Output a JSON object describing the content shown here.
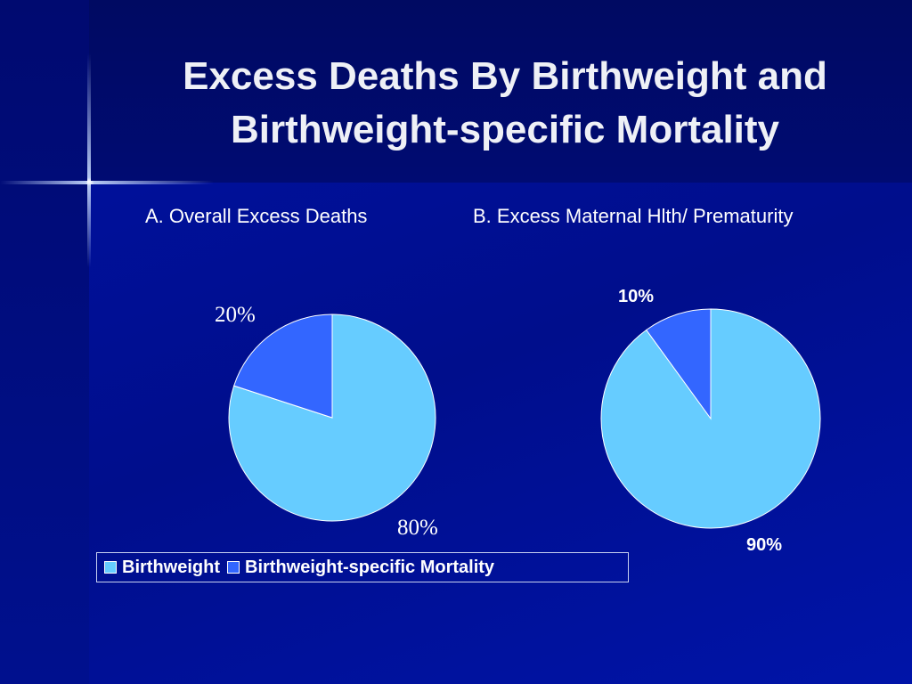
{
  "slide": {
    "title_line1": "Excess Deaths By Birthweight and",
    "title_line2": "Birthweight-specific Mortality"
  },
  "colors": {
    "birthweight": "#66ccff",
    "birthweight_specific_mortality": "#3366ff"
  },
  "legend": {
    "items": [
      {
        "label": "Birthweight"
      },
      {
        "label": "Birthweight-specific Mortality"
      }
    ]
  },
  "chart_data": [
    {
      "type": "pie",
      "title": "A. Overall Excess Deaths",
      "slices": [
        {
          "name": "Birthweight",
          "value": 80,
          "label": "80%"
        },
        {
          "name": "Birthweight-specific Mortality",
          "value": 20,
          "label": "20%"
        }
      ],
      "legend": "bottom"
    },
    {
      "type": "pie",
      "title": "B. Excess Maternal Hlth/ Prematurity",
      "slices": [
        {
          "name": "Birthweight",
          "value": 90,
          "label": "90%"
        },
        {
          "name": "Birthweight-specific Mortality",
          "value": 10,
          "label": "10%"
        }
      ],
      "legend": "bottom"
    }
  ]
}
